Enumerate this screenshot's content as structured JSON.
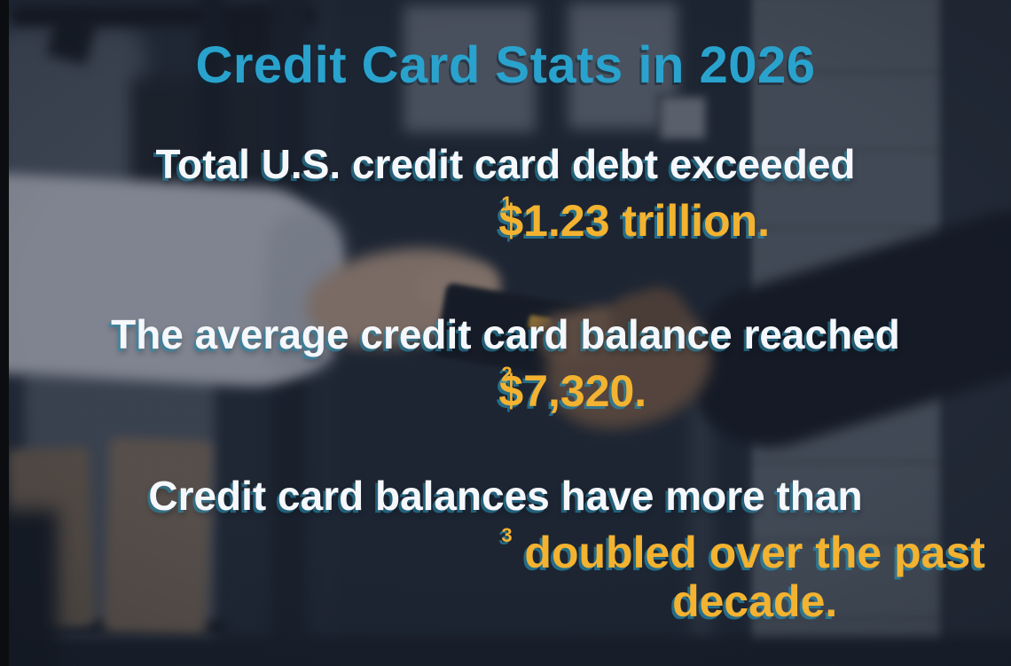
{
  "infographic": {
    "title": "Credit Card Stats in 2026",
    "stats": [
      {
        "lead": "Total U.S. credit card debt exceeded",
        "highlight": "$1.23 trillion.",
        "footnote": "1"
      },
      {
        "lead": "The average credit card balance reached",
        "highlight": "$7,320.",
        "footnote": "2"
      },
      {
        "lead": "Credit card balances have more than",
        "highlight": "doubled over the past decade.",
        "footnote": "3"
      }
    ],
    "colors": {
      "title_teal": "#29a3cd",
      "highlight_yellow": "#f3b230",
      "lead_white": "#f5f7fa",
      "shadow_teal": "#2a8cad",
      "background_navy": "#232c39"
    }
  }
}
